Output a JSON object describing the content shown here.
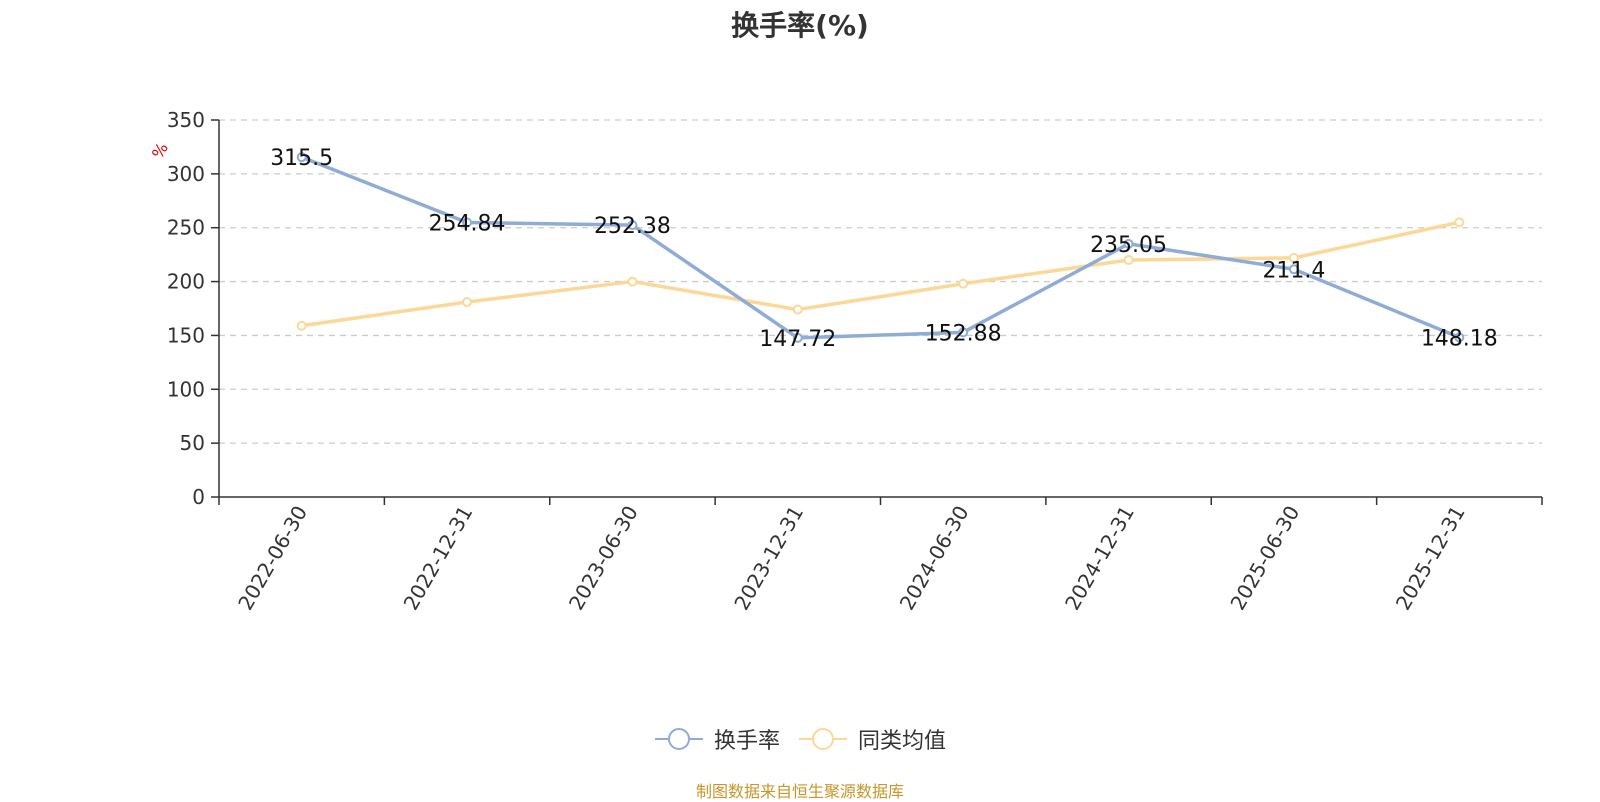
{
  "chart_data": {
    "type": "line",
    "title": "换手率(%)",
    "ylabel": "%",
    "categories": [
      "2022-06-30",
      "2022-12-31",
      "2023-06-30",
      "2023-12-31",
      "2024-06-30",
      "2024-12-31",
      "2025-06-30",
      "2025-12-31"
    ],
    "ylim": [
      0,
      350
    ],
    "yticks": [
      0,
      50,
      100,
      150,
      200,
      250,
      300,
      350
    ],
    "grid": true,
    "legend_position": "bottom",
    "series": [
      {
        "name": "换手率",
        "color": "#8eacd6",
        "values": [
          315.5,
          254.84,
          252.38,
          147.72,
          152.88,
          235.05,
          211.4,
          148.18
        ],
        "data_labels": [
          "315.5",
          "254.84",
          "252.38",
          "147.72",
          "152.88",
          "235.05",
          "211.4",
          "148.18"
        ]
      },
      {
        "name": "同类均值",
        "color": "#fbd898",
        "values": [
          159,
          181,
          200,
          174,
          198,
          220,
          222,
          255
        ]
      }
    ]
  },
  "source_note": "制图数据来自恒生聚源数据库",
  "colors": {
    "axis": "#333333",
    "grid": "#cccccc",
    "unit": "#e00000",
    "source": "#c8962a"
  }
}
